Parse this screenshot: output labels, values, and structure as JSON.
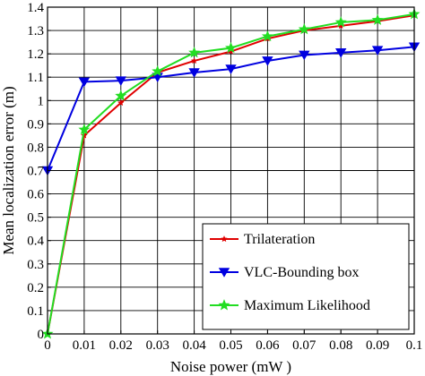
{
  "chart_data": {
    "type": "line",
    "title": "",
    "xlabel": "Noise power (mW )",
    "ylabel": "Mean localization error (m)",
    "x": [
      0,
      0.01,
      0.02,
      0.03,
      0.04,
      0.05,
      0.06,
      0.07,
      0.08,
      0.09,
      0.1
    ],
    "xlim": [
      0,
      0.1
    ],
    "ylim": [
      0,
      1.4
    ],
    "xticks": [
      "0",
      "0.01",
      "0.02",
      "0.03",
      "0.04",
      "0.05",
      "0.06",
      "0.07",
      "0.08",
      "0.09",
      "0.1"
    ],
    "yticks": [
      "0",
      "0.1",
      "0.2",
      "0.3",
      "0.4",
      "0.5",
      "0.6",
      "0.7",
      "0.8",
      "0.9",
      "1",
      "1.1",
      "1.2",
      "1.3",
      "1.4"
    ],
    "grid": true,
    "legend_position": "bottom-right",
    "series": [
      {
        "name": "Trilateration",
        "color": "#e00000",
        "marker": "star-small",
        "values": [
          0.0,
          0.85,
          0.99,
          1.12,
          1.17,
          1.21,
          1.265,
          1.3,
          1.32,
          1.34,
          1.365
        ]
      },
      {
        "name": "VLC-Bounding box",
        "color": "#0000e0",
        "marker": "triangle-down",
        "values": [
          0.7,
          1.08,
          1.085,
          1.1,
          1.12,
          1.135,
          1.17,
          1.195,
          1.205,
          1.215,
          1.23
        ]
      },
      {
        "name": "Maximum Likelihood",
        "color": "#22dd22",
        "marker": "star",
        "values": [
          0.0,
          0.875,
          1.02,
          1.125,
          1.205,
          1.225,
          1.275,
          1.305,
          1.335,
          1.345,
          1.37
        ]
      }
    ]
  }
}
